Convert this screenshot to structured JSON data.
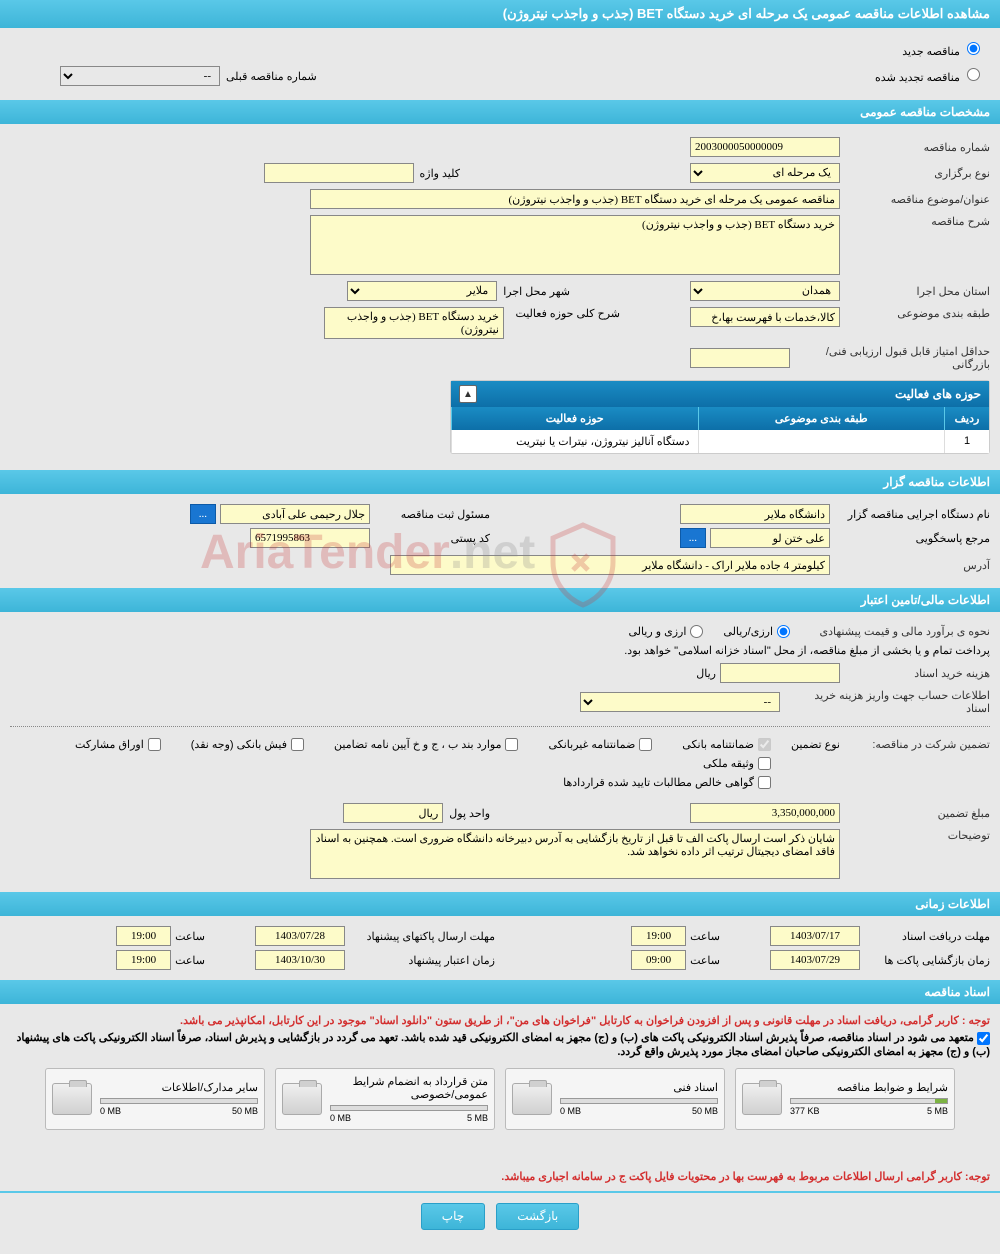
{
  "header": {
    "title": "مشاهده اطلاعات مناقصه عمومی یک مرحله ای خرید دستگاه BET (جذب و واجذب نیتروژن)"
  },
  "tender_type": {
    "option_new": "مناقصه جدید",
    "option_renewed": "مناقصه تجدید شده",
    "prev_number_label": "شماره مناقصه قبلی",
    "prev_number_placeholder": "--"
  },
  "sections": {
    "general": "مشخصات مناقصه عمومی",
    "organizer": "اطلاعات مناقصه گزار",
    "financial": "اطلاعات مالی/تامین اعتبار",
    "timing": "اطلاعات زمانی",
    "documents": "اسناد مناقصه"
  },
  "general": {
    "tender_no_label": "شماره مناقصه",
    "tender_no": "2003000050000009",
    "type_label": "نوع برگزاری",
    "type_value": "یک مرحله ای",
    "keyword_label": "کلید واژه",
    "keyword_value": "",
    "subject_label": "عنوان/موضوع مناقصه",
    "subject_value": "مناقصه عمومی یک مرحله ای خرید دستگاه BET (جذب و واجذب نیتروژن)",
    "description_label": "شرح مناقصه",
    "description_value": "خرید دستگاه BET (جذب و واجذب نیتروژن)",
    "province_label": "استان محل اجرا",
    "province_value": "همدان",
    "city_label": "شهر محل اجرا",
    "city_value": "ملایر",
    "category_label": "طبقه بندی موضوعی",
    "category_value": "کالا،خدمات با فهرست بها،خ",
    "activity_desc_label": "شرح کلی حوزه فعالیت",
    "activity_desc_value": "خرید دستگاه BET (جذب و واجذب نیتروژن)",
    "min_score_label": "حداقل امتیاز قابل قبول ارزیابی فنی/بازرگانی",
    "min_score_value": ""
  },
  "activity_table": {
    "title": "حوزه های فعالیت",
    "col_row": "ردیف",
    "col_category": "طبقه بندی موضوعی",
    "col_activity": "حوزه فعالیت",
    "rows": [
      {
        "idx": "1",
        "category": "",
        "activity": "دستگاه آنالیز نیتروژن، نیترات یا نیتریت"
      }
    ]
  },
  "organizer": {
    "exec_name_label": "نام دستگاه اجرایی مناقصه گزار",
    "exec_name_value": "دانشگاه ملایر",
    "registrar_label": "مسئول ثبت مناقصه",
    "registrar_value": "جلال رحیمی علی آبادی",
    "more_btn": "...",
    "contact_label": "مرجع پاسخگویی",
    "contact_value": "علی ختن لو",
    "postal_label": "کد پستی",
    "postal_value": "6571995863",
    "address_label": "آدرس",
    "address_value": "کیلومتر 4 جاده ملایر اراک - دانشگاه ملایر"
  },
  "financial": {
    "estimate_label": "نحوه ی برآورد مالی  و  قیمت پیشنهادی",
    "opt_rial": "ارزی/ریالی",
    "opt_currency": "ارزی و ریالی",
    "payment_note": "پرداخت تمام و یا بخشی از مبلغ مناقصه، از محل \"اسناد خزانه اسلامی\" خواهد بود.",
    "doc_cost_label": "هزینه خرید اسناد",
    "doc_cost_value": "",
    "rial_unit": "ریال",
    "account_label": "اطلاعات حساب جهت واریز هزینه خرید اسناد",
    "account_placeholder": "--",
    "guarantee_label": "تضمین شرکت در مناقصه:",
    "guarantee_type_label": "نوع تضمین",
    "chk_bank": "ضمانتنامه بانکی",
    "chk_nonbank": "ضمانتنامه غیربانکی",
    "chk_bylaw": "موارد بند ب ، ج و خ آیین نامه تضامین",
    "chk_cash": "فیش بانکی (وجه نقد)",
    "chk_bonds": "اوراق مشارکت",
    "chk_property": "وثیقه ملکی",
    "chk_cert": "گواهی خالص مطالبات تایید شده قراردادها",
    "amount_label": "مبلغ تضمین",
    "amount_value": "3,350,000,000",
    "unit_label": "واحد پول",
    "unit_value": "ریال",
    "notes_label": "توضیحات",
    "notes_value": "شایان ذکر است ارسال پاکت الف تا قبل از تاریخ بازگشایی به آدرس دبیرخانه دانشگاه ضروری است. همچنین به اسناد فاقد امضای دیجیتال ترتیب اثر داده نخواهد شد."
  },
  "timing": {
    "doc_deadline_label": "مهلت دریافت اسناد",
    "doc_deadline_date": "1403/07/17",
    "doc_deadline_time": "19:00",
    "proposal_deadline_label": "مهلت ارسال پاکتهای پیشنهاد",
    "proposal_deadline_date": "1403/07/28",
    "proposal_deadline_time": "19:00",
    "opening_label": "زمان بازگشایی پاکت ها",
    "opening_date": "1403/07/29",
    "opening_time": "09:00",
    "validity_label": "زمان اعتبار پیشنهاد",
    "validity_date": "1403/10/30",
    "validity_time": "19:00",
    "time_label": "ساعت"
  },
  "documents": {
    "notice1": "توجه : کاربر گرامی، دریافت اسناد در مهلت قانونی و پس از افزودن فراخوان به کارتابل \"فراخوان های من\"، از طریق ستون \"دانلود اسناد\" موجود در این کارتابل، امکانپذیر می باشد.",
    "notice2": "متعهد می شود در اسناد مناقصه، صرفاً پذیرش اسناد الکترونیکی پاکت های (ب) و (ج) مجهز به امضای الکترونیکی قید شده باشد. تعهد می گردد در بازگشایی و پذیرش اسناد، صرفاً اسناد الکترونیکی پاکت های پیشنهاد (ب) و (ج) مجهز به امضای الکترونیکی صاحبان امضای مجاز مورد پذیرش واقع گردد.",
    "notice3": "توجه: کاربر گرامی ارسال اطلاعات مربوط به فهرست بها در محتویات فایل پاکت ج در سامانه اجباری میباشد.",
    "cards": [
      {
        "title": "شرایط و ضوابط مناقصه",
        "used": "377 KB",
        "total": "5 MB",
        "fill_pct": 8
      },
      {
        "title": "اسناد فنی",
        "used": "0 MB",
        "total": "50 MB",
        "fill_pct": 0
      },
      {
        "title": "متن قرارداد به انضمام شرایط عمومی/خصوصی",
        "used": "0 MB",
        "total": "5 MB",
        "fill_pct": 0
      },
      {
        "title": "سایر مدارک/اطلاعات",
        "used": "0 MB",
        "total": "50 MB",
        "fill_pct": 0
      }
    ]
  },
  "actions": {
    "back": "بازگشت",
    "print": "چاپ"
  },
  "watermark": {
    "text1": "AriaTender",
    "text2": ".net"
  }
}
